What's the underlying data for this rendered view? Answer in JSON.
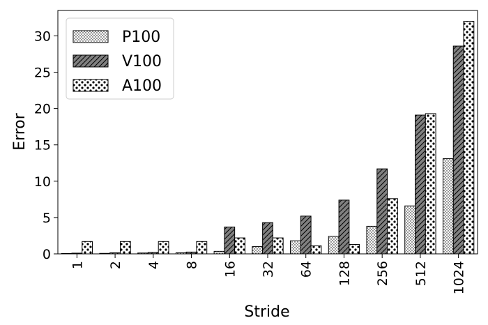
{
  "chart_data": {
    "type": "bar",
    "title": "",
    "xlabel": "Stride",
    "ylabel": "Error",
    "categories": [
      "1",
      "2",
      "4",
      "8",
      "16",
      "32",
      "64",
      "128",
      "256",
      "512",
      "1024"
    ],
    "ylim": [
      0,
      33.5
    ],
    "yticks": [
      0,
      5,
      10,
      15,
      20,
      25,
      30
    ],
    "legend_position": "top-left",
    "grid": false,
    "series": [
      {
        "name": "P100",
        "hatch": "dots",
        "color": "#ffffff",
        "values": [
          0.05,
          0.07,
          0.12,
          0.15,
          0.35,
          1.0,
          1.8,
          2.4,
          3.8,
          6.6,
          13.1
        ]
      },
      {
        "name": "V100",
        "hatch": "diagonal",
        "color": "#808080",
        "values": [
          0.1,
          0.15,
          0.2,
          0.25,
          3.7,
          4.3,
          5.2,
          7.4,
          11.7,
          19.1,
          28.6
        ]
      },
      {
        "name": "A100",
        "hatch": "circles",
        "color": "#ffffff",
        "values": [
          1.7,
          1.7,
          1.7,
          1.7,
          2.2,
          2.2,
          1.1,
          1.3,
          7.6,
          19.3,
          32.0
        ]
      }
    ]
  }
}
